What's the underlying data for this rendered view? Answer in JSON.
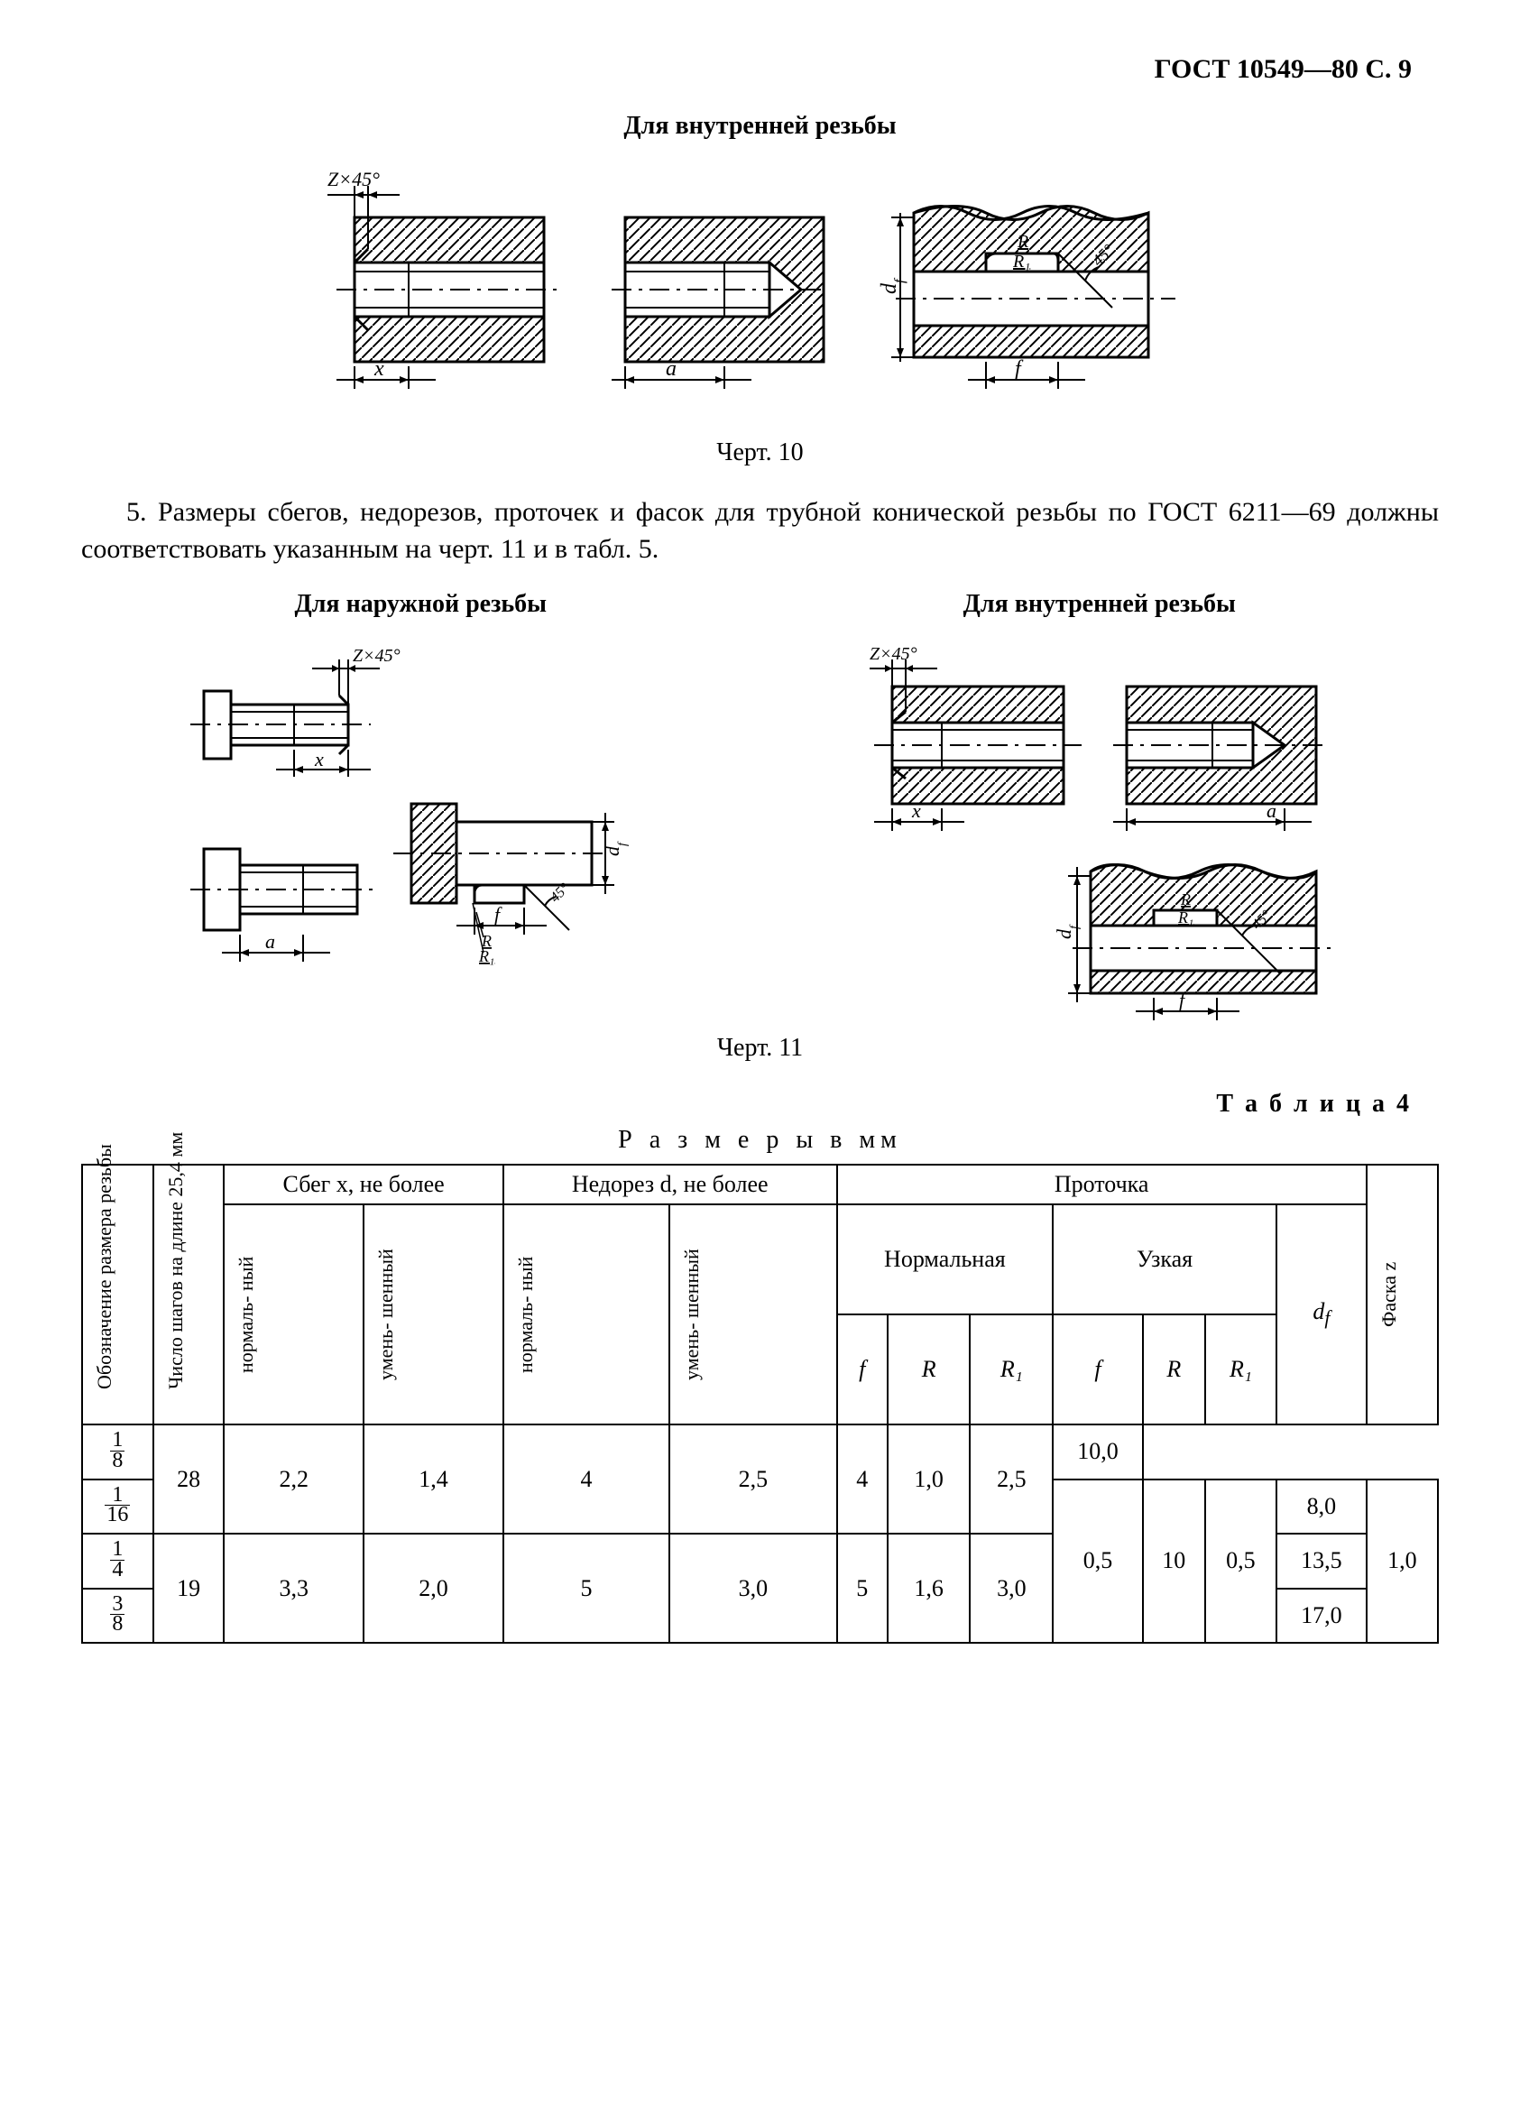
{
  "page_header": "ГОСТ 10549—80 С. 9",
  "section10_title": "Для внутренней резьбы",
  "fig10": {
    "caption": "Черт. 10",
    "labels": {
      "chamfer": "Z×45°",
      "x": "x",
      "a": "a",
      "f": "f",
      "df": "d_f",
      "R": "R",
      "R1": "R₁",
      "ang": "45°"
    }
  },
  "paragraph5": "5. Размеры сбегов, недорезов, проточек и фасок для трубной конической резьбы по ГОСТ 6211—69 должны соответствовать указанным на черт. 11 и в табл. 5.",
  "section11_left_title": "Для наружной резьбы",
  "section11_right_title": "Для внутренней резьбы",
  "fig11": {
    "caption": "Черт. 11",
    "labels": {
      "chamfer": "Z×45°",
      "x": "x",
      "a": "a",
      "f": "f",
      "df": "d_f",
      "R": "R",
      "R1": "R₁",
      "ang": "45°"
    }
  },
  "table": {
    "label": "Т а б л и ц а 4",
    "subtitle": "Р а з м е р ы   в мм",
    "headers": {
      "col1": "Обозначение размера резьбы",
      "col2": "Число шагов на длине 25,4 мм",
      "sbeg": "Сбег x, не более",
      "nedorez": "Недорез d, не более",
      "protochka": "Проточка",
      "normal": "нормаль-\nный",
      "umen": "умень-\nшенный",
      "norm_grp": "Нормальная",
      "uzk_grp": "Узкая",
      "f": "f",
      "R": "R",
      "R1": "R₁",
      "df": "d_f",
      "faska": "Фаска z"
    },
    "rows": [
      {
        "size_frac": [
          "1",
          "8"
        ],
        "sh": "28",
        "sb_n": "2,2",
        "sb_u": "1,4",
        "nd_n": "4",
        "nd_u": "2,5",
        "pn_f": "4",
        "pn_R": "1,0",
        "pn_R1": "",
        "pu_f": "2,5",
        "pu_R": "",
        "pu_R1": "",
        "df": "10,0",
        "faska": ""
      },
      {
        "size_frac": [
          "1",
          "16"
        ],
        "sh": "",
        "sb_n": "",
        "sb_u": "",
        "nd_n": "",
        "nd_u": "",
        "pn_f": "",
        "pn_R": "",
        "pn_R1": "0,5",
        "pu_f": "",
        "pu_R": "10",
        "pu_R1": "0,5",
        "df": "8,0",
        "faska": "1,0"
      },
      {
        "size_frac": [
          "1",
          "4"
        ],
        "sh": "19",
        "sb_n": "3,3",
        "sb_u": "2,0",
        "nd_n": "5",
        "nd_u": "3,0",
        "pn_f": "5",
        "pn_R": "1,6",
        "pn_R1": "",
        "pu_f": "3,0",
        "pu_R": "",
        "pu_R1": "",
        "df": "13,5",
        "faska": ""
      },
      {
        "size_frac": [
          "3",
          "8"
        ],
        "sh": "",
        "sb_n": "",
        "sb_u": "",
        "nd_n": "",
        "nd_u": "",
        "pn_f": "",
        "pn_R": "",
        "pn_R1": "",
        "pu_f": "",
        "pu_R": "",
        "pu_R1": "",
        "df": "17,0",
        "faska": ""
      }
    ]
  },
  "colors": {
    "line": "#000000",
    "bg": "#ffffff"
  },
  "fonts": {
    "body_size_pt": 22,
    "header_size_pt": 21
  }
}
